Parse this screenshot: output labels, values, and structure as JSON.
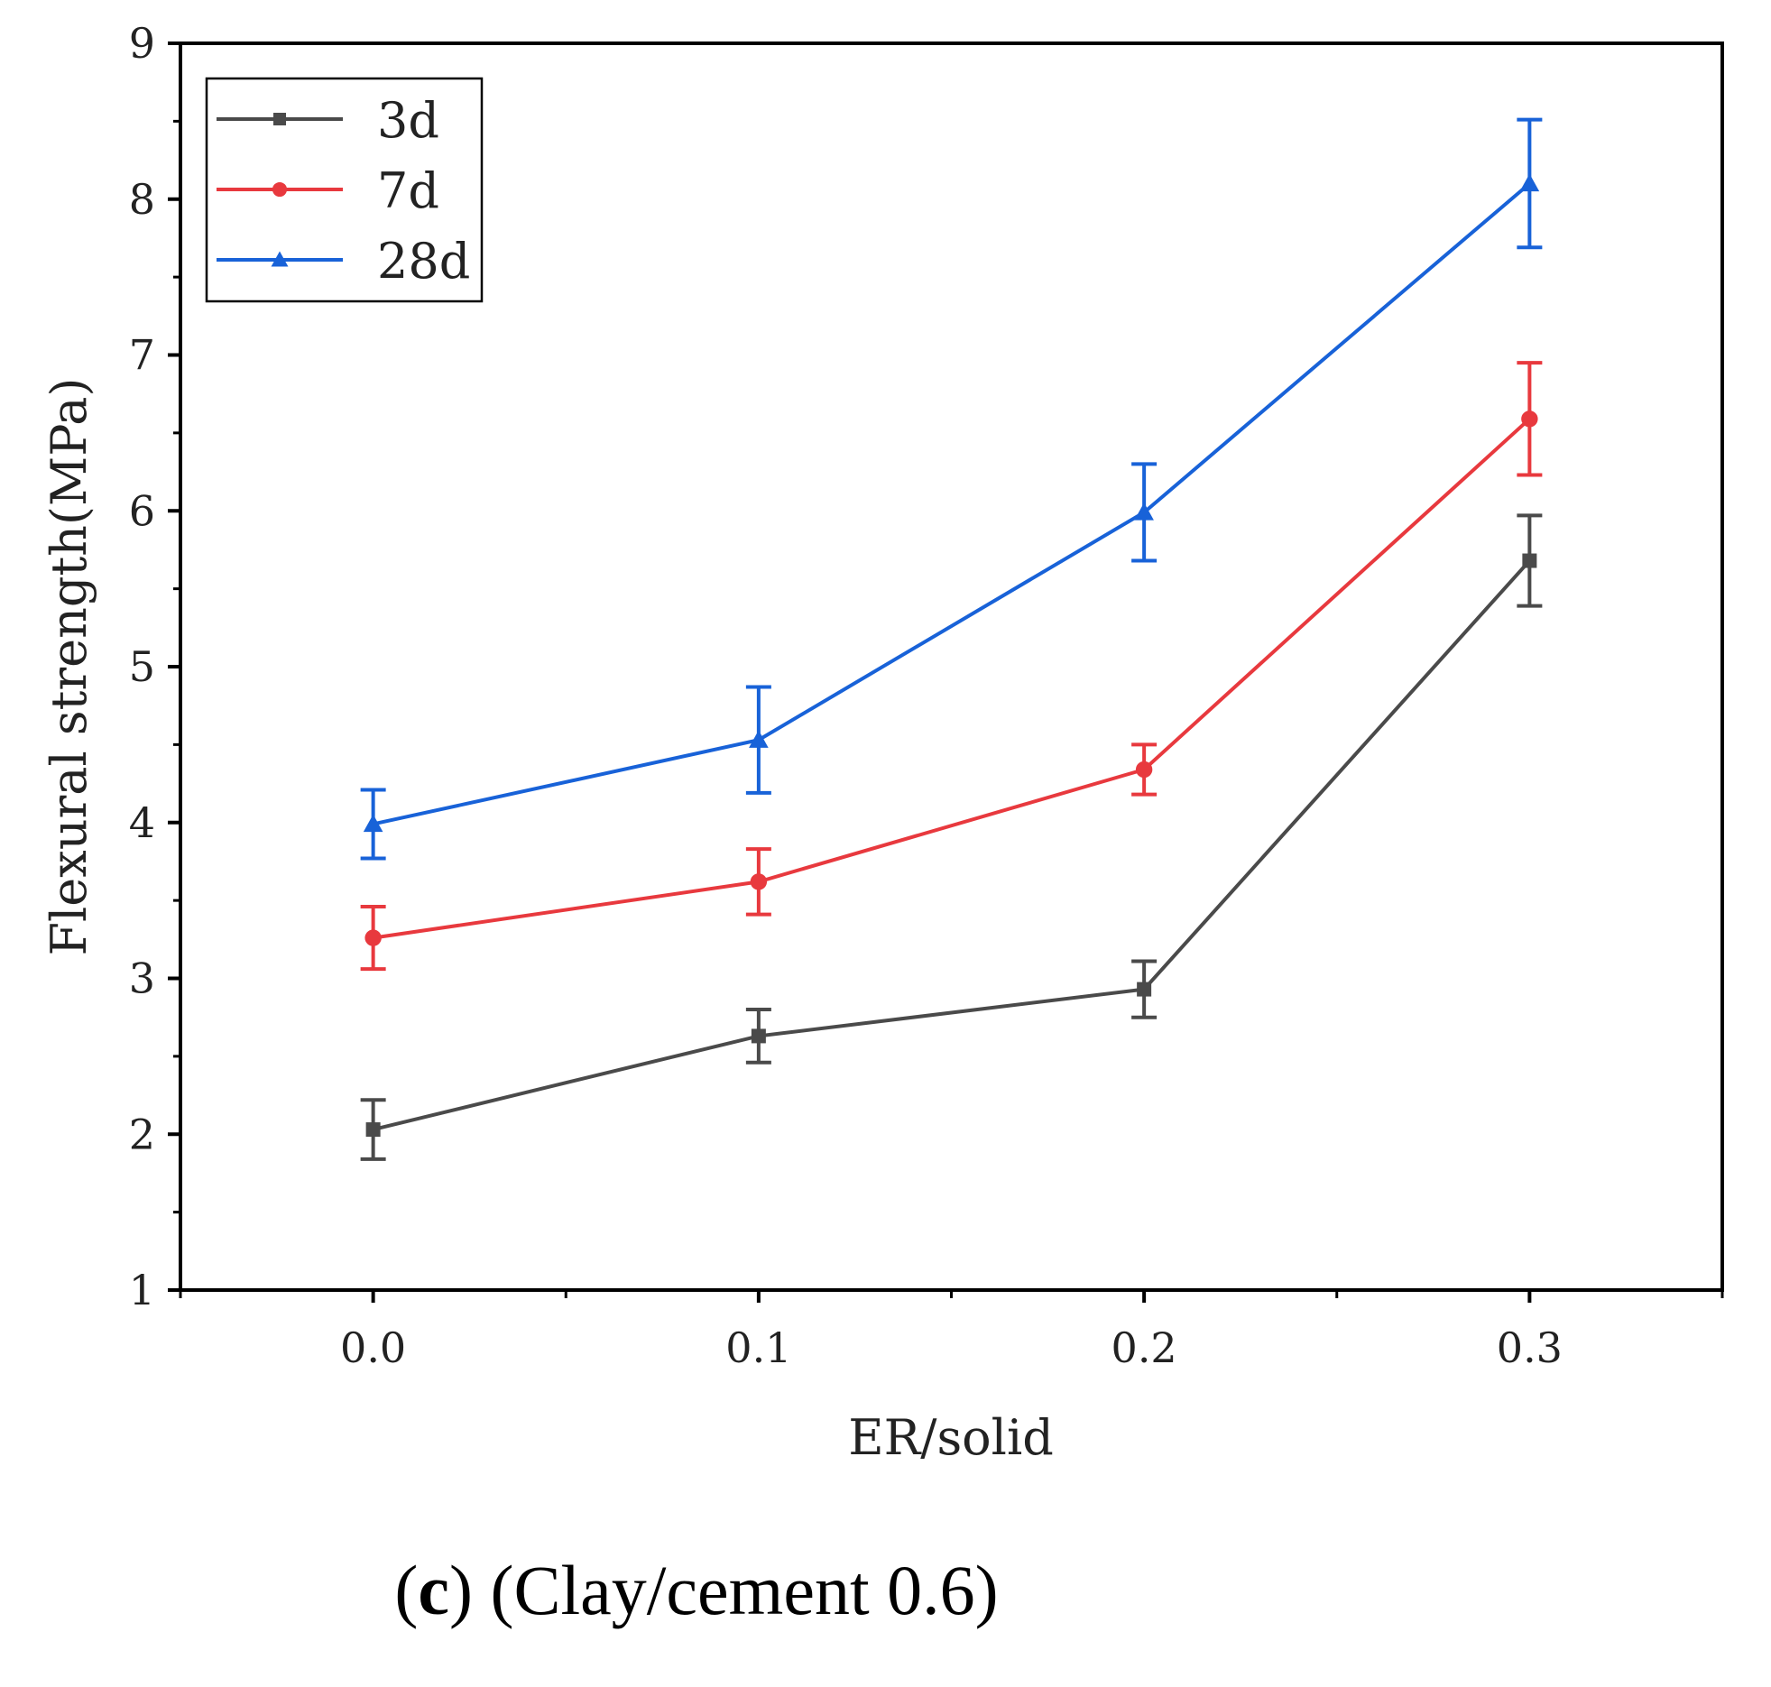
{
  "chart_data": {
    "type": "line",
    "title": "",
    "xlabel": "ER/solid",
    "ylabel": "Flexural strength(MPa)",
    "xlim": [
      -0.05,
      0.35
    ],
    "ylim": [
      1,
      9
    ],
    "x": [
      0.0,
      0.1,
      0.2,
      0.3
    ],
    "xticks": [
      0.0,
      0.1,
      0.2,
      0.3
    ],
    "xtick_labels": [
      "0.0",
      "0.1",
      "0.2",
      "0.3"
    ],
    "yticks": [
      1,
      2,
      3,
      4,
      5,
      6,
      7,
      8,
      9
    ],
    "ytick_labels": [
      "1",
      "2",
      "3",
      "4",
      "5",
      "6",
      "7",
      "8",
      "9"
    ],
    "grid": false,
    "legend_position": "top-left",
    "series": [
      {
        "name": "3d",
        "color": "#4a4a4a",
        "marker": "square",
        "values": [
          2.03,
          2.63,
          2.93,
          5.68
        ],
        "errors": [
          0.19,
          0.17,
          0.18,
          0.29
        ]
      },
      {
        "name": "7d",
        "color": "#e8393e",
        "marker": "circle",
        "values": [
          3.26,
          3.62,
          4.34,
          6.59
        ],
        "errors": [
          0.2,
          0.21,
          0.16,
          0.36
        ]
      },
      {
        "name": "28d",
        "color": "#1862d8",
        "marker": "triangle",
        "values": [
          3.99,
          4.53,
          5.99,
          8.1
        ],
        "errors": [
          0.22,
          0.34,
          0.31,
          0.41
        ]
      }
    ]
  },
  "caption": {
    "label": "c",
    "open_paren": "(",
    "close_paren": ")",
    "text": " (Clay/cement 0.6)"
  }
}
